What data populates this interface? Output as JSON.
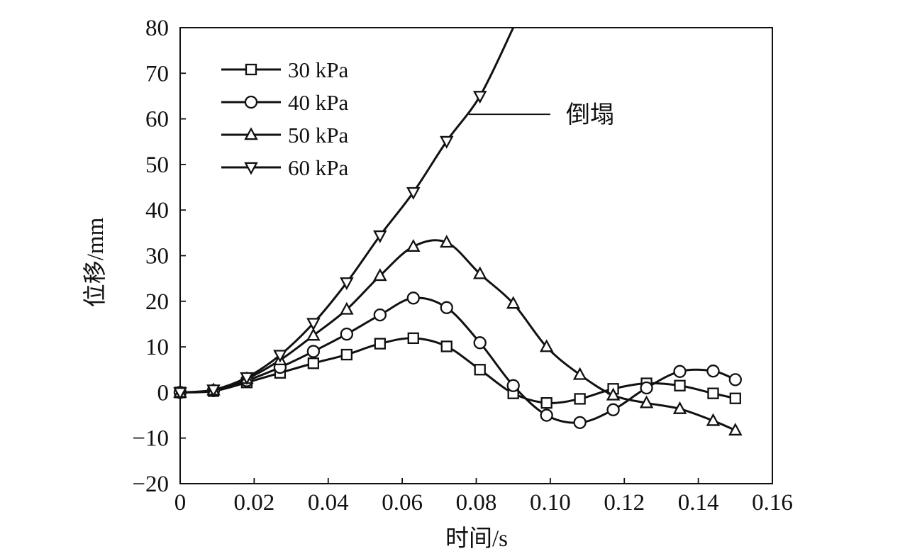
{
  "chart_data": {
    "type": "line",
    "title": "",
    "xlabel": "时间/s",
    "ylabel": "位移/mm",
    "xlim": [
      0,
      0.16
    ],
    "ylim": [
      -20,
      80
    ],
    "x_ticks": [
      "0",
      "0.02",
      "0.04",
      "0.06",
      "0.08",
      "0.10",
      "0.12",
      "0.14",
      "0.16"
    ],
    "y_ticks": [
      "80",
      "70",
      "60",
      "50",
      "40",
      "30",
      "20",
      "10",
      "0",
      "−10",
      "−20"
    ],
    "grid": false,
    "legend_position": "top-left",
    "annotation": {
      "text": "倒塌",
      "x_start": 0.078,
      "x_end": 0.1,
      "y": 61
    },
    "series": [
      {
        "name": "30 kPa",
        "marker": "square",
        "x": [
          0,
          0.009,
          0.018,
          0.027,
          0.036,
          0.045,
          0.054,
          0.063,
          0.072,
          0.081,
          0.09,
          0.099,
          0.108,
          0.117,
          0.126,
          0.135,
          0.144,
          0.15
        ],
        "y": [
          0,
          0.3,
          2.2,
          4.3,
          6.4,
          8.3,
          10.7,
          11.9,
          10.1,
          5.0,
          -0.2,
          -2.3,
          -1.4,
          0.8,
          2.0,
          1.5,
          -0.2,
          -1.3
        ]
      },
      {
        "name": "40 kPa",
        "marker": "circle",
        "x": [
          0,
          0.009,
          0.018,
          0.027,
          0.036,
          0.045,
          0.054,
          0.063,
          0.072,
          0.081,
          0.09,
          0.099,
          0.108,
          0.117,
          0.126,
          0.135,
          0.144,
          0.15
        ],
        "y": [
          0,
          0.4,
          2.6,
          5.5,
          9.0,
          12.8,
          17.0,
          20.7,
          18.6,
          10.9,
          1.5,
          -5.0,
          -6.6,
          -3.8,
          1.0,
          4.6,
          4.7,
          2.8
        ]
      },
      {
        "name": "50 kPa",
        "marker": "triangle-up",
        "x": [
          0,
          0.009,
          0.018,
          0.027,
          0.036,
          0.045,
          0.054,
          0.063,
          0.072,
          0.081,
          0.09,
          0.099,
          0.108,
          0.117,
          0.126,
          0.135,
          0.144,
          0.15
        ],
        "y": [
          0,
          0.5,
          3.0,
          7.1,
          12.5,
          18.2,
          25.6,
          32.0,
          32.9,
          26.0,
          19.5,
          10.0,
          3.9,
          -0.6,
          -2.3,
          -3.6,
          -6.2,
          -8.3
        ]
      },
      {
        "name": "60 kPa",
        "marker": "triangle-down",
        "x": [
          0,
          0.009,
          0.018,
          0.027,
          0.036,
          0.045,
          0.054,
          0.063,
          0.072,
          0.081,
          0.09
        ],
        "y": [
          0,
          0.6,
          3.3,
          8.2,
          15.2,
          24.1,
          34.4,
          43.9,
          55.1,
          65.0,
          80.0
        ]
      }
    ]
  }
}
